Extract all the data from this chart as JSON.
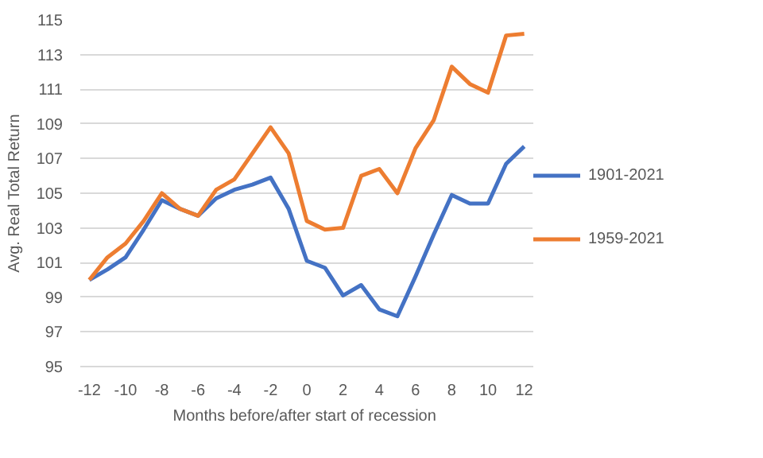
{
  "chart_data": {
    "type": "line",
    "xlabel": "Months before/after  start of recession",
    "ylabel": "Avg. Real Total Return",
    "x": [
      -12,
      -11,
      -10,
      -9,
      -8,
      -7,
      -6,
      -5,
      -4,
      -3,
      -2,
      -1,
      0,
      1,
      2,
      3,
      4,
      5,
      6,
      7,
      8,
      9,
      10,
      11,
      12
    ],
    "xlim": [
      -12.5,
      12.5
    ],
    "xticks": [
      -12,
      -10,
      -8,
      -6,
      -4,
      -2,
      0,
      2,
      4,
      6,
      8,
      10,
      12
    ],
    "ylim": [
      95,
      115
    ],
    "yticks": [
      95,
      97,
      99,
      101,
      103,
      105,
      107,
      109,
      111,
      113,
      115
    ],
    "grid": "y",
    "legend": "right",
    "series": [
      {
        "name": "1901-2021",
        "color": "#4472c4",
        "values": [
          100,
          100.6,
          101.3,
          102.9,
          104.6,
          104.1,
          103.7,
          104.7,
          105.2,
          105.5,
          105.9,
          104.1,
          101.1,
          100.7,
          99.1,
          99.7,
          98.3,
          97.9,
          100.2,
          102.6,
          104.9,
          104.4,
          104.4,
          106.7,
          107.7
        ]
      },
      {
        "name": "1959-2021",
        "color": "#ed7d31",
        "values": [
          100,
          101.3,
          102.1,
          103.4,
          105.0,
          104.1,
          103.7,
          105.2,
          105.8,
          107.3,
          108.8,
          107.3,
          103.4,
          102.9,
          103.0,
          106.0,
          106.4,
          105.0,
          107.6,
          109.2,
          112.3,
          111.3,
          110.8,
          114.1,
          114.2
        ]
      }
    ]
  }
}
